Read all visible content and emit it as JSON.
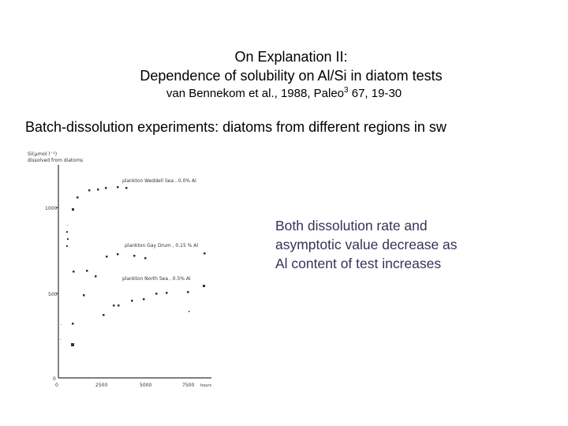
{
  "slide": {
    "title_line1": "On Explanation II:",
    "title_line2": "Dependence of solubility on Al/Si in diatom tests",
    "citation_prefix": "van Bennekom et al., 1988, Paleo",
    "citation_sup": "3",
    "citation_suffix": " 67, 19-30",
    "subtitle": "Batch-dissolution experiments: diatoms from different regions in sw",
    "note_line1": "Both dissolution rate and",
    "note_line2": "asymptotic value decrease as",
    "note_line3": "Al content of test increases"
  },
  "figure": {
    "ylabel_line1": "Si(µmol l⁻¹)",
    "ylabel_line2": "dissolved from diatoms",
    "series1_label": "plankton Weddell Sea , 0.0% Al",
    "series2_label": "plankton Gay Drum , 0.15 % Al",
    "series3_label": "plankton North Sea , 0.5% Al",
    "yticks": [
      "1000",
      "500",
      "0"
    ],
    "xticks": [
      "0",
      "2500",
      "5000",
      "7500"
    ],
    "xunit": "hours"
  },
  "colors": {
    "note_text": "#33335a",
    "scan_ink": "#333333"
  }
}
